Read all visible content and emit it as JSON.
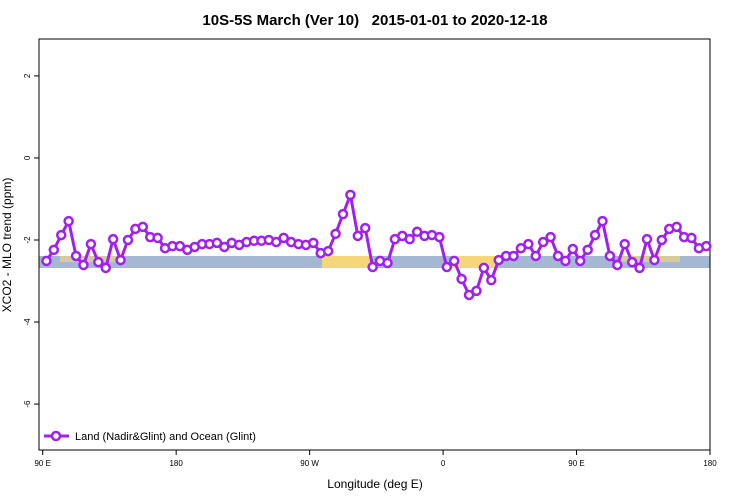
{
  "chart_data": {
    "type": "line",
    "title": "10S-5S March (Ver 10)   2015-01-01 to 2020-12-18",
    "x_label": "Longitude (deg E)",
    "y_label": "XCO2 - MLO trend (ppm)",
    "xlim": [
      87.5,
      540
    ],
    "ylim": [
      -7.12,
      2.9
    ],
    "xticks": [
      {
        "value": 90,
        "label": "90 E"
      },
      180,
      {
        "value": 270,
        "label": "90 W"
      },
      {
        "value": 360,
        "label": "0"
      },
      {
        "value": 450,
        "label": "90 E"
      },
      {
        "value": 540,
        "label": "180"
      }
    ],
    "yticks": [
      2,
      0,
      -2,
      -4,
      -6
    ],
    "legend": "bottom-left",
    "x": [
      92.5,
      97.5,
      102.5,
      107.5,
      112.5,
      117.5,
      122.5,
      127.5,
      132.5,
      137.5,
      142.5,
      147.5,
      152.5,
      157.5,
      162.5,
      167.5,
      172.5,
      177.5,
      182.5,
      187.5,
      192.5,
      197.5,
      202.5,
      207.5,
      212.5,
      217.5,
      222.5,
      227.5,
      232.5,
      237.5,
      242.5,
      247.5,
      252.5,
      257.5,
      262.5,
      267.5,
      272.5,
      277.5,
      282.5,
      287.5,
      292.5,
      297.5,
      302.5,
      307.5,
      312.5,
      317.5,
      322.5,
      327.5,
      332.5,
      337.5,
      342.5,
      347.5,
      352.5,
      357.5,
      362.5,
      367.5,
      372.5,
      377.5,
      382.5,
      387.5,
      392.5,
      397.5,
      402.5,
      407.5,
      412.5,
      417.5,
      422.5,
      427.5,
      432.5,
      437.5,
      442.5,
      447.5,
      452.5,
      457.5,
      462.5,
      467.5,
      472.5,
      477.5,
      482.5,
      487.5,
      492.5,
      497.5,
      502.5,
      507.5,
      512.5,
      517.5,
      522.5,
      527.5,
      532.5,
      537.5
    ],
    "series": [
      {
        "name": "Land (Nadir&Glint) and Ocean (Glint)",
        "color": "#a020f0",
        "values": [
          -2.51,
          -2.24,
          -1.88,
          -1.54,
          -2.39,
          -2.61,
          -2.1,
          -2.54,
          -2.68,
          -1.98,
          -2.49,
          -2.0,
          -1.73,
          -1.68,
          -1.93,
          -1.95,
          -2.2,
          -2.15,
          -2.15,
          -2.24,
          -2.17,
          -2.1,
          -2.1,
          -2.07,
          -2.17,
          -2.07,
          -2.12,
          -2.05,
          -2.02,
          -2.02,
          -2.0,
          -2.05,
          -1.95,
          -2.05,
          -2.1,
          -2.12,
          -2.07,
          -2.32,
          -2.27,
          -1.85,
          -1.37,
          -0.9,
          -1.9,
          -1.71,
          -2.66,
          -2.51,
          -2.56,
          -1.98,
          -1.9,
          -1.98,
          -1.8,
          -1.9,
          -1.88,
          -1.93,
          -2.66,
          -2.51,
          -2.95,
          -3.34,
          -3.24,
          -2.68,
          -2.98,
          -2.49,
          -2.39,
          -2.39,
          -2.2,
          -2.1,
          -2.39,
          -2.05,
          -1.93,
          -2.39,
          -2.51,
          -2.22,
          -2.51,
          -2.24,
          -1.88,
          -1.54,
          -2.39,
          -2.61,
          -2.1,
          -2.54,
          -2.68,
          -1.98,
          -2.49,
          -2.0,
          -1.73,
          -1.68,
          -1.93,
          -1.95,
          -2.2,
          -2.15
        ]
      }
    ]
  }
}
